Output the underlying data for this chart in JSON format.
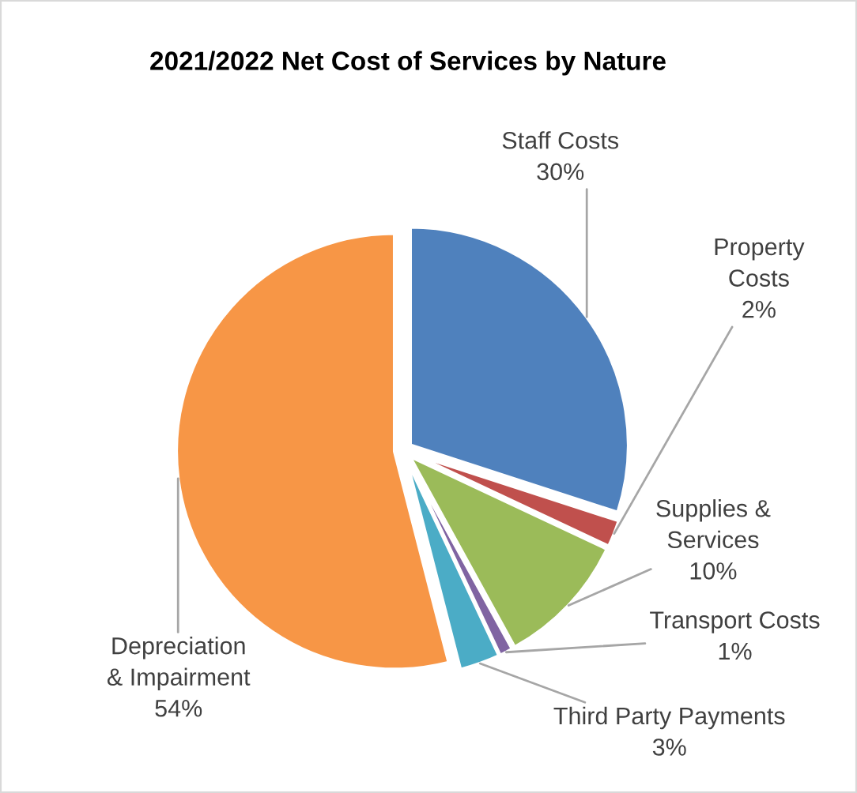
{
  "chart_data": {
    "type": "pie",
    "title": "2021/2022 Net Cost of Services by Nature",
    "categories": [
      "Staff Costs",
      "Property Costs",
      "Supplies & Services",
      "Transport Costs",
      "Third Party Payments",
      "Depreciation & Impairment"
    ],
    "values": [
      30,
      2,
      10,
      1,
      3,
      54
    ],
    "value_labels": [
      "30%",
      "2%",
      "10%",
      "1%",
      "3%",
      "54%"
    ],
    "colors": [
      "#4f81bd",
      "#c0504d",
      "#9bbb59",
      "#8064a2",
      "#4bacc6",
      "#f79646"
    ]
  }
}
